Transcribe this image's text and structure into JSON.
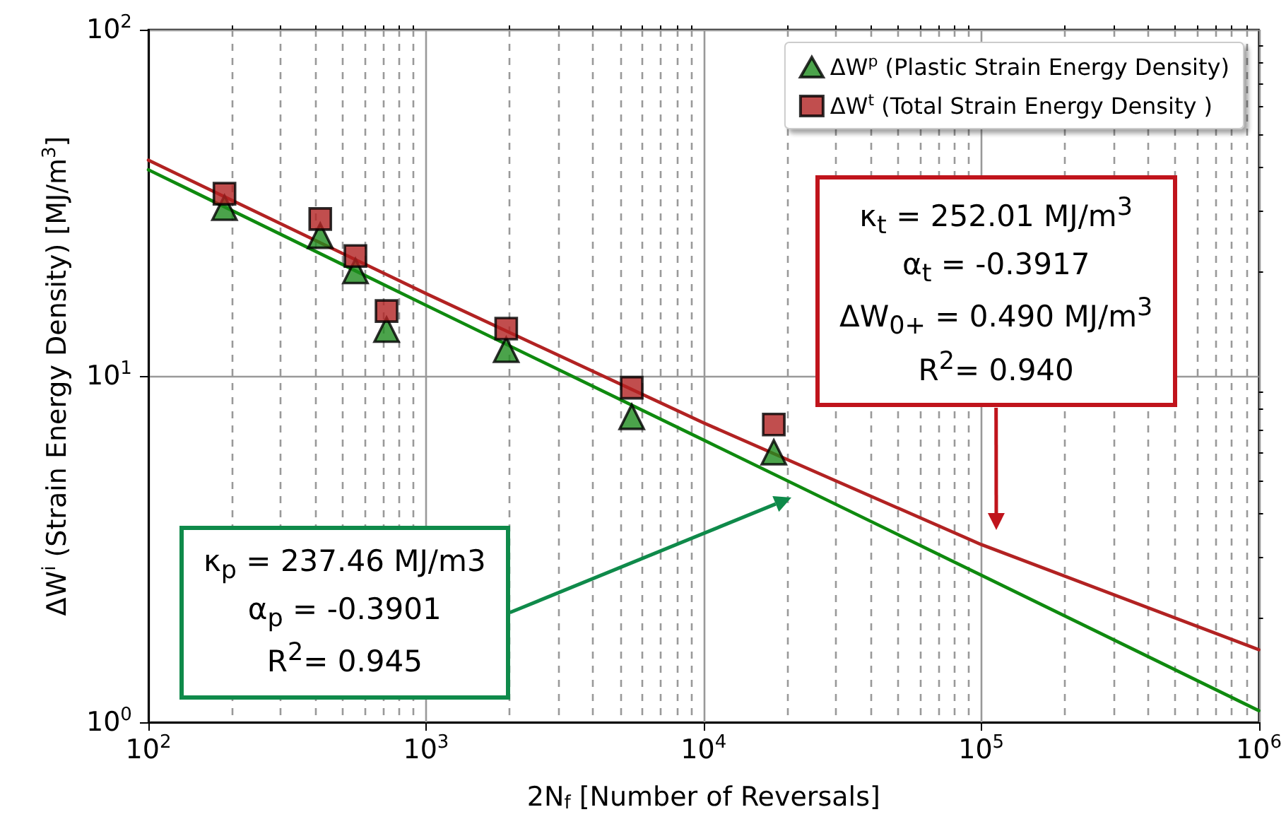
{
  "chart_data": {
    "type": "scatter",
    "xlabel": "2N$_{f}$ [Number of Reversals]",
    "ylabel": "ΔW$^{i}$ (Strain Energy Density) [MJ/m$^{3}$]",
    "log": "xy",
    "grid": true,
    "legend": "top right",
    "xlim": [
      100,
      1000000
    ],
    "xticks": [
      {
        "value": 100,
        "label": "10$^{2}$"
      },
      {
        "value": 200,
        "label": null
      },
      {
        "value": 300,
        "label": null
      },
      {
        "value": 400,
        "label": null
      },
      {
        "value": 500,
        "label": null
      },
      {
        "value": 600,
        "label": null
      },
      {
        "value": 700,
        "label": null
      },
      {
        "value": 800,
        "label": null
      },
      {
        "value": 900,
        "label": null
      },
      {
        "value": 1000,
        "label": "10$^{3}$"
      },
      {
        "value": 2000,
        "label": null
      },
      {
        "value": 3000,
        "label": null
      },
      {
        "value": 4000,
        "label": null
      },
      {
        "value": 5000,
        "label": null
      },
      {
        "value": 6000,
        "label": null
      },
      {
        "value": 7000,
        "label": null
      },
      {
        "value": 8000,
        "label": null
      },
      {
        "value": 9000,
        "label": null
      },
      {
        "value": 10000,
        "label": "10$^{4}$"
      },
      {
        "value": 20000,
        "label": null
      },
      {
        "value": 30000,
        "label": null
      },
      {
        "value": 40000,
        "label": null
      },
      {
        "value": 50000,
        "label": null
      },
      {
        "value": 60000,
        "label": null
      },
      {
        "value": 70000,
        "label": null
      },
      {
        "value": 80000,
        "label": null
      },
      {
        "value": 90000,
        "label": null
      },
      {
        "value": 100000,
        "label": "10$^{5}$"
      },
      {
        "value": 200000,
        "label": null
      },
      {
        "value": 300000,
        "label": null
      },
      {
        "value": 400000,
        "label": null
      },
      {
        "value": 500000,
        "label": null
      },
      {
        "value": 600000,
        "label": null
      },
      {
        "value": 700000,
        "label": null
      },
      {
        "value": 800000,
        "label": null
      },
      {
        "value": 900000,
        "label": null
      },
      {
        "value": 1000000,
        "label": "10$^{6}$"
      }
    ],
    "ylim": [
      1,
      100
    ],
    "yticks": [
      {
        "value": 1,
        "label": "10$^{0}$"
      },
      {
        "value": 2,
        "label": null
      },
      {
        "value": 3,
        "label": null
      },
      {
        "value": 4,
        "label": null
      },
      {
        "value": 5,
        "label": null
      },
      {
        "value": 6,
        "label": null
      },
      {
        "value": 7,
        "label": null
      },
      {
        "value": 8,
        "label": null
      },
      {
        "value": 9,
        "label": null
      },
      {
        "value": 10,
        "label": "10$^{1}$"
      },
      {
        "value": 20,
        "label": null
      },
      {
        "value": 30,
        "label": null
      },
      {
        "value": 40,
        "label": null
      },
      {
        "value": 50,
        "label": null
      },
      {
        "value": 60,
        "label": null
      },
      {
        "value": 70,
        "label": null
      },
      {
        "value": 80,
        "label": null
      },
      {
        "value": 90,
        "label": null
      },
      {
        "value": 100,
        "label": "10$^{2}$"
      }
    ],
    "x": [
      188,
      416,
      557,
      721,
      1945,
      5510,
      17900
    ],
    "series": [
      {
        "name": "ΔW$^{p}$ (Plastic Strain Energy Density)",
        "color": "#1e8c1e",
        "marker": "triangle",
        "values": [
          30.6,
          25.4,
          20.1,
          13.6,
          11.9,
          7.62,
          6.02
        ]
      },
      {
        "name": "ΔW$^{t}$ (Total Strain Energy Density )",
        "color": "#b22222",
        "marker": "square",
        "values": [
          33.6,
          28.4,
          22.2,
          15.4,
          13.7,
          9.25,
          7.24
        ]
      },
      {
        "type": "line",
        "color": "#b22222",
        "marker": "none",
        "x": [
          100,
          1000,
          10000,
          100000,
          1000000
        ],
        "values": [
          42.0,
          17.3,
          7.32,
          3.26,
          1.62
        ]
      },
      {
        "type": "line",
        "color": "#0f8a0f",
        "marker": "none",
        "x": [
          100,
          1000,
          10000,
          100000,
          1000000
        ],
        "values": [
          39.4,
          16.0,
          6.53,
          2.66,
          1.08
        ]
      }
    ],
    "annotations": [
      "κ$_{t}$ = 252.01 MJ/m$^{3}$",
      "α$_{t}$ = -0.3917",
      "ΔW$_{0+}$ = 0.490 MJ/m$^{3}$",
      "R$^{2}$= 0.940",
      "κ$_{p}$ = 237.46 MJ/m3",
      "α$_{p}$ = -0.3901",
      "R$^{2}$= 0.945"
    ]
  }
}
